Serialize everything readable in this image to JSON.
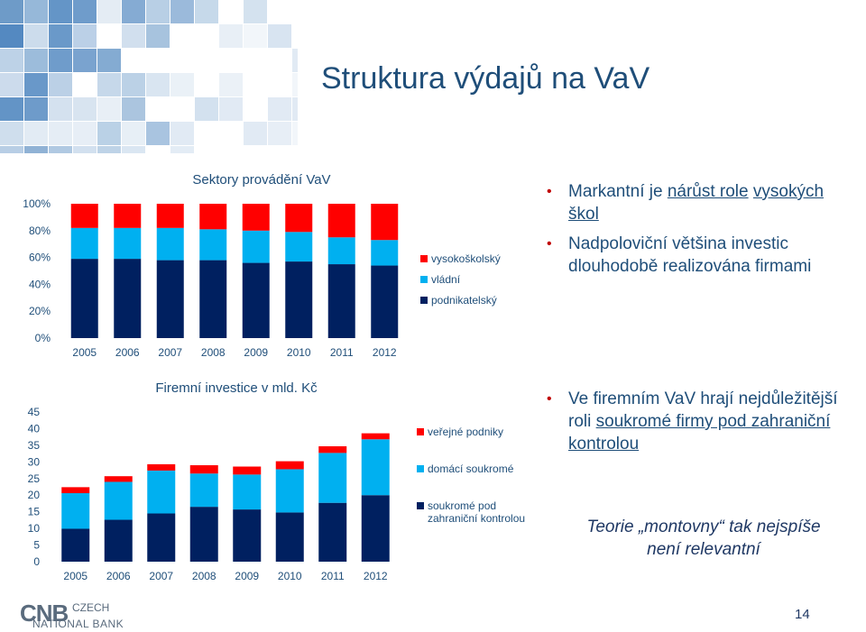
{
  "slide": {
    "title": "Struktura výdajů na VaV",
    "page_number": "14",
    "logo": {
      "mark": "CNB",
      "line1": "CZECH",
      "line2": "NATIONAL BANK"
    }
  },
  "bullets_top": [
    {
      "parts": [
        {
          "t": "Markantní je ",
          "u": false
        },
        {
          "t": "nárůst role",
          "u": true
        },
        {
          "t": " ",
          "u": false
        },
        {
          "t": "vysokých škol",
          "u": true
        }
      ]
    },
    {
      "parts": [
        {
          "t": "Nadpoloviční většina investic dlouhodobě realizována firmami",
          "u": false
        }
      ]
    }
  ],
  "bullets_bottom": [
    {
      "parts": [
        {
          "t": "Ve firemním VaV hrají nejdůležitější roli ",
          "u": false
        },
        {
          "t": "soukromé firmy pod zahraniční kontrolou",
          "u": true
        }
      ]
    }
  ],
  "note": {
    "line1": "Teorie „montovny“ tak nejspíše",
    "line2": "není relevantní"
  },
  "colors": {
    "navy": "#002060",
    "cyan": "#00b0f0",
    "red": "#ff0000",
    "text": "#1f4e79"
  },
  "chart_data": [
    {
      "type": "bar",
      "stacked": true,
      "title": "Sektory provádění VaV",
      "categories": [
        "2005",
        "2006",
        "2007",
        "2008",
        "2009",
        "2010",
        "2011",
        "2012"
      ],
      "y_ticks": [
        "0%",
        "20%",
        "40%",
        "60%",
        "80%",
        "100%"
      ],
      "ylim": [
        0,
        100
      ],
      "series": [
        {
          "name": "podnikatelský",
          "color": "#002060",
          "values": [
            59,
            59,
            58,
            58,
            56,
            57,
            55,
            54
          ]
        },
        {
          "name": "vládní",
          "color": "#00b0f0",
          "values": [
            23,
            23,
            24,
            23,
            24,
            22,
            20,
            19
          ]
        },
        {
          "name": "vysokoškolský",
          "color": "#ff0000",
          "values": [
            18,
            18,
            18,
            19,
            20,
            21,
            25,
            27
          ]
        }
      ],
      "legend_order": [
        "vysokoškolský",
        "vládní",
        "podnikatelský"
      ]
    },
    {
      "type": "bar",
      "stacked": true,
      "title": "Firemní investice v mld. Kč",
      "categories": [
        "2005",
        "2006",
        "2007",
        "2008",
        "2009",
        "2010",
        "2011",
        "2012"
      ],
      "y_ticks": [
        "0",
        "5",
        "10",
        "15",
        "20",
        "25",
        "30",
        "35",
        "40",
        "45"
      ],
      "ylim": [
        0,
        45
      ],
      "series": [
        {
          "name": "soukromé pod zahraniční kontrolou",
          "color": "#002060",
          "values": [
            9.9,
            12.6,
            14.5,
            16.5,
            15.7,
            14.8,
            17.7,
            20.0
          ]
        },
        {
          "name": "domácí soukromé",
          "color": "#00b0f0",
          "values": [
            10.7,
            11.4,
            12.9,
            10.0,
            10.5,
            13.0,
            15.0,
            16.8
          ]
        },
        {
          "name": "veřejné podniky",
          "color": "#ff0000",
          "values": [
            1.8,
            1.7,
            1.9,
            2.5,
            2.4,
            2.4,
            2.0,
            1.8
          ]
        }
      ],
      "legend_order": [
        "veřejné podniky",
        "domácí soukromé",
        "soukromé pod zahraniční kontrolou"
      ]
    }
  ]
}
